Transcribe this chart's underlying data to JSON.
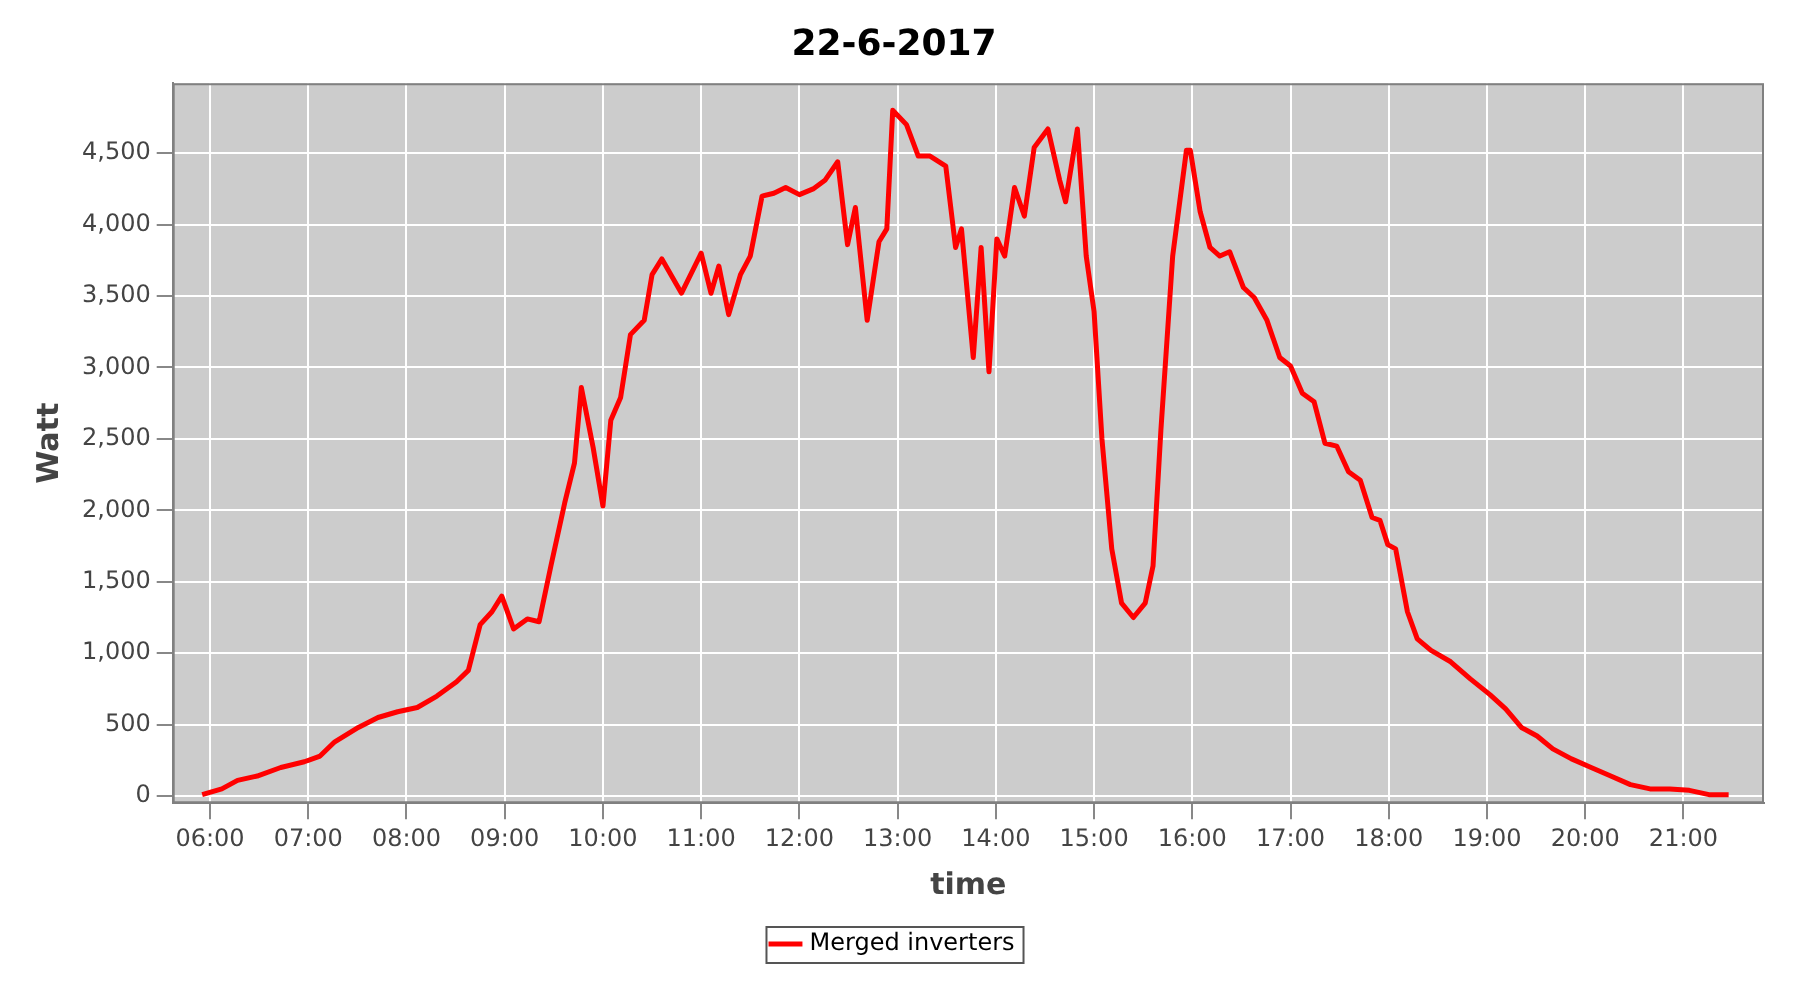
{
  "chart_data": {
    "type": "line",
    "title": "22-6-2017",
    "xlabel": "time",
    "ylabel": "Watt",
    "xlim": [
      5.62,
      21.82
    ],
    "ylim": [
      -50,
      4990
    ],
    "xticks": [
      {
        "value": 6,
        "label": "06:00"
      },
      {
        "value": 7,
        "label": "07:00"
      },
      {
        "value": 8,
        "label": "08:00"
      },
      {
        "value": 9,
        "label": "09:00"
      },
      {
        "value": 10,
        "label": "10:00"
      },
      {
        "value": 11,
        "label": "11:00"
      },
      {
        "value": 12,
        "label": "12:00"
      },
      {
        "value": 13,
        "label": "13:00"
      },
      {
        "value": 14,
        "label": "14:00"
      },
      {
        "value": 15,
        "label": "15:00"
      },
      {
        "value": 16,
        "label": "16:00"
      },
      {
        "value": 17,
        "label": "17:00"
      },
      {
        "value": 18,
        "label": "18:00"
      },
      {
        "value": 19,
        "label": "19:00"
      },
      {
        "value": 20,
        "label": "20:00"
      },
      {
        "value": 21,
        "label": "21:00"
      }
    ],
    "yticks": [
      0,
      500,
      {
        "value": 1000,
        "label": "1,000"
      },
      {
        "value": 1500,
        "label": "1,500"
      },
      {
        "value": 2000,
        "label": "2,000"
      },
      {
        "value": 2500,
        "label": "2,500"
      },
      {
        "value": 3000,
        "label": "3,000"
      },
      {
        "value": 3500,
        "label": "3,500"
      },
      {
        "value": 4000,
        "label": "4,000"
      },
      {
        "value": 4500,
        "label": "4,500"
      }
    ],
    "grid": true,
    "legend": "bottom",
    "marker": "none",
    "line_style": "solid",
    "series": [
      {
        "name": "Merged inverters",
        "color": "#ff0000",
        "x": [
          5.92,
          6.12,
          6.28,
          6.48,
          6.72,
          6.96,
          7.12,
          7.27,
          7.51,
          7.71,
          7.91,
          8.11,
          8.31,
          8.51,
          8.63,
          8.75,
          8.87,
          8.97,
          9.09,
          9.23,
          9.35,
          9.47,
          9.61,
          9.71,
          9.78,
          9.9,
          10.0,
          10.08,
          10.18,
          10.28,
          10.42,
          10.5,
          10.6,
          10.8,
          11.0,
          11.1,
          11.18,
          11.28,
          11.4,
          11.5,
          11.62,
          11.74,
          11.86,
          12.0,
          12.14,
          12.26,
          12.39,
          12.49,
          12.57,
          12.69,
          12.81,
          12.89,
          12.95,
          13.09,
          13.21,
          13.33,
          13.49,
          13.59,
          13.65,
          13.77,
          13.85,
          13.93,
          14.01,
          14.09,
          14.19,
          14.29,
          14.39,
          14.53,
          14.65,
          14.71,
          14.83,
          14.92,
          15.0,
          15.08,
          15.18,
          15.28,
          15.4,
          15.52,
          15.6,
          15.68,
          15.8,
          15.94,
          15.98,
          16.08,
          16.18,
          16.28,
          16.38,
          16.52,
          16.63,
          16.76,
          16.89,
          17.0,
          17.12,
          17.24,
          17.35,
          17.47,
          17.59,
          17.71,
          17.83,
          17.91,
          17.99,
          18.07,
          18.19,
          18.29,
          18.43,
          18.63,
          18.83,
          19.03,
          19.19,
          19.35,
          19.51,
          19.67,
          19.86,
          20.06,
          20.26,
          20.46,
          20.66,
          20.86,
          21.06,
          21.26,
          21.46
        ],
        "values": [
          10,
          50,
          110,
          140,
          200,
          240,
          280,
          380,
          480,
          550,
          590,
          620,
          700,
          800,
          880,
          1200,
          1290,
          1400,
          1170,
          1240,
          1220,
          1610,
          2050,
          2330,
          2860,
          2440,
          2030,
          2630,
          2790,
          3230,
          3330,
          3650,
          3760,
          3520,
          3800,
          3520,
          3710,
          3370,
          3650,
          3780,
          4200,
          4220,
          4260,
          4210,
          4250,
          4310,
          4440,
          3860,
          4120,
          3330,
          3880,
          3970,
          4800,
          4700,
          4480,
          4480,
          4410,
          3840,
          3970,
          3070,
          3840,
          2970,
          3900,
          3780,
          4260,
          4060,
          4540,
          4670,
          4310,
          4160,
          4670,
          3780,
          3390,
          2500,
          1730,
          1350,
          1250,
          1350,
          1610,
          2560,
          3780,
          4520,
          4520,
          4090,
          3840,
          3780,
          3810,
          3560,
          3490,
          3330,
          3070,
          3010,
          2820,
          2760,
          2470,
          2450,
          2270,
          2210,
          1950,
          1930,
          1760,
          1730,
          1290,
          1100,
          1020,
          940,
          820,
          710,
          610,
          480,
          420,
          330,
          260,
          200,
          140,
          80,
          50,
          50,
          40,
          10,
          10
        ]
      }
    ]
  }
}
